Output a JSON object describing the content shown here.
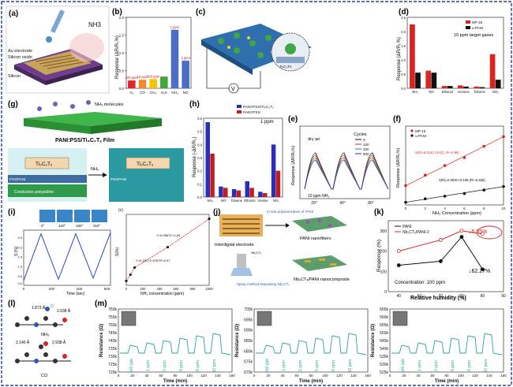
{
  "panel_a": {
    "letter": "(a)",
    "labels": [
      "Au electrode",
      "Silicon oxide",
      "Silicon"
    ],
    "gas": "NH3"
  },
  "panel_b": {
    "letter": "(b)",
    "ylabel": "Response (ΔR/R₀%)",
    "chart_data": {
      "type": "bar",
      "categories": [
        "H₂",
        "CO",
        "CH₄",
        "H₂S",
        "NH₃",
        "NO"
      ],
      "values": [
        0.22,
        0.24,
        0.26,
        0.33,
        1.65,
        0.78
      ],
      "data_labels": [
        "300 ppm",
        "10 ppm",
        "300 ppm",
        "",
        "1 ppm",
        "1 ppm"
      ],
      "colors": [
        "#e0262a",
        "#f08a2a",
        "#f4c400",
        "#41a63b",
        "#4a6fc4",
        "#4a6fc4"
      ],
      "ylim": [
        0,
        2.0
      ],
      "yticks": [
        "0.0",
        "0.5",
        "1.0",
        "1.5",
        "2.0"
      ]
    }
  },
  "panel_c": {
    "letter": "(c)",
    "labels": [
      "V",
      "Ti₃C₂Tx"
    ]
  },
  "panel_d": {
    "letter": "(d)",
    "ylabel": "Response (ΔR/R₀%)",
    "note": "10 ppm target gases",
    "chart_data": {
      "type": "bar",
      "categories": [
        "NH₃",
        "NO",
        "Ethanol",
        "Acetone",
        "Toluene",
        "NO₂"
      ],
      "series": [
        {
          "name": "MP-15",
          "color": "#d9241f",
          "values": [
            2.25,
            0.62,
            0.08,
            0.1,
            0.06,
            1.2
          ]
        },
        {
          "name": "u-PANI",
          "color": "#111111",
          "values": [
            0.55,
            0.55,
            0.08,
            0.06,
            0.04,
            0.3
          ]
        }
      ],
      "ylim": [
        0,
        2.5
      ],
      "yticks": [
        "0.0",
        "0.5",
        "1.0",
        "1.5",
        "2.0",
        "2.5"
      ]
    }
  },
  "panel_e": {
    "letter": "(e)",
    "ylabel": "Response (ΔR/R₀%)",
    "dry_air": "dry air",
    "gas_note": "10 ppm NH₃",
    "legend_title": "Cycles",
    "legend": [
      "0",
      "100",
      "200",
      "500"
    ],
    "xticks": [
      "20°",
      "40°",
      "80°"
    ]
  },
  "panel_f": {
    "letter": "(f)",
    "ylabel": "Response (ΔR/R₀%)",
    "xlabel": "NH₃ Concentration (ppm)",
    "legend": [
      "MP-15",
      "u-PANI"
    ],
    "fit1": "S(R)=6.911C+0.4(C, R²=0.96)",
    "fit2": "S(R)=0.093C+0.105 (R²=0.925)",
    "chart_data": {
      "type": "scatter",
      "x": [
        0,
        2,
        4,
        6,
        8,
        10
      ],
      "series": [
        {
          "name": "MP-15",
          "color": "#d9241f",
          "values": [
            1.1,
            1.7,
            2.25,
            2.7,
            3.35,
            3.9
          ]
        },
        {
          "name": "u-PANI",
          "color": "#111111",
          "values": [
            0.15,
            0.35,
            0.5,
            0.65,
            0.85,
            1.05
          ]
        }
      ],
      "xticks": [
        "0",
        "2",
        "4",
        "6",
        "8",
        "10"
      ]
    }
  },
  "panel_g": {
    "letter": "(g)",
    "molecules": "NH₃ molecules",
    "film": "PANI:PSS/Ti₃C₂Tₓ Film",
    "flake": "Ti₃C₂Tₓ",
    "arrow": "NH₃",
    "sub": "PSS/PANI",
    "chan": "Conductive polyaniline"
  },
  "panel_h": {
    "letter": "(h)",
    "ylabel": "Response (-ΔR/R₀)",
    "note": "1 ppm",
    "chart_data": {
      "type": "bar",
      "categories": [
        "NH₃",
        "NO",
        "Toluene",
        "Ethanol",
        "Aetone",
        "NO₂"
      ],
      "series": [
        {
          "name": "PANI:PSS/Ti₃C₂Tₓ",
          "color": "#2a2fb8",
          "values": [
            0.57,
            0.08,
            0.06,
            0.12,
            0.04,
            0.4
          ]
        },
        {
          "name": "PANI:PSS",
          "color": "#c01d1d",
          "values": [
            0.33,
            0.07,
            0.05,
            0.07,
            0.03,
            0.2
          ]
        }
      ],
      "ylim": [
        0,
        0.6
      ],
      "yticks": [
        "0.0",
        "0.1",
        "0.2",
        "0.3",
        "0.4",
        "0.5",
        "0.6"
      ]
    }
  },
  "panel_i": {
    "letter": "(i)",
    "inner_letter": "(c)",
    "angles": [
      "0°",
      "120°",
      "150°",
      "210°"
    ],
    "xlabel": "Time (sec)",
    "ylabel": "S (%)",
    "xticks": [
      "0",
      "200",
      "400",
      "600"
    ],
    "yticks": [
      "0.2",
      "0.8",
      "1.6",
      "2.4",
      "3.2",
      "4.0"
    ],
    "chart_data": {
      "type": "line",
      "x": [
        0,
        125,
        250,
        375,
        500,
        625
      ],
      "values": [
        0.4,
        4.3,
        0.5,
        4.3,
        0.6,
        4.4
      ]
    },
    "fit_xlabel": "NH₃ concentration (ppm)",
    "fit_ylabel": "S(%)",
    "fit1": "Y=0.33C+2.578 R²=0.97",
    "fit2": "Y=0.0567C+1.64",
    "fit_xticks": [
      "0",
      "200",
      "400",
      "600",
      "800",
      "1000"
    ],
    "fit_data": {
      "type": "scatter",
      "x": [
        0,
        50,
        100,
        500,
        1000
      ],
      "values": [
        0.5,
        1.2,
        2.0,
        4.3,
        7.5
      ]
    }
  },
  "panel_j": {
    "letter": "(j)",
    "interdigital": "Interdigital electrode",
    "insitu": "In-situ polymerization of PANI",
    "pani": "PANI nanofibers",
    "spray": "Spray method Depositing Nb₂CTₓ",
    "nb": "Nb₂CTₓ",
    "composite": "Nb₂CTₓ/PANI nanocomposite"
  },
  "panel_k": {
    "letter": "(k)",
    "ylabel": "Response (%)",
    "xlabel": "Relative humidity (%)",
    "legend": [
      "PANI",
      "Nb₂CTₓ/PANI-2"
    ],
    "ann1": "↓5.85%",
    "ann2": "↓62.27%",
    "conc": "Concentration: 100 ppm",
    "xticks": [
      "40",
      "50",
      "60",
      "70",
      "80",
      "90"
    ],
    "yticks": [
      "0",
      "100",
      "200",
      "300"
    ],
    "chart_data": {
      "type": "line",
      "x": [
        40,
        60,
        70,
        80
      ],
      "series": [
        {
          "name": "PANI",
          "color": "#111111",
          "values": [
            130,
            150,
            270,
            110
          ]
        },
        {
          "name": "Nb₂CTₓ/PANI-2",
          "color": "#d9241f",
          "values": [
            200,
            255,
            300,
            285
          ]
        }
      ],
      "xlim": [
        35,
        90
      ],
      "ylim": [
        0,
        350
      ]
    }
  },
  "panel_l": {
    "letter": "(l)",
    "d1": "1.873 Å",
    "d2": "2.038 Å",
    "mol1": "NH₃",
    "d3": "2.140 Å",
    "d4": "2.938 Å",
    "mol2": "CO"
  },
  "panel_m": {
    "letter": "(m)",
    "ylabel": "Resistance (Ω)",
    "xlabel": "Time (min)",
    "conc_labels": [
      "500 ppb",
      "1 ppm",
      "2 ppm",
      "5 ppm",
      "8 ppm",
      "10 ppm"
    ],
    "xticks": [
      "0",
      "20",
      "40",
      "60",
      "80",
      "100",
      "120",
      "140",
      "160"
    ],
    "plot1": {
      "yticks": [
        "760k",
        "755k",
        "750k",
        "745k",
        "740k",
        "735k",
        "730k",
        "725k",
        "720k"
      ],
      "base": [
        745,
        735
      ]
    },
    "plot2": {
      "yticks": [
        "700k",
        "695k",
        "690k",
        "685k",
        "680k",
        "675k",
        "670k"
      ],
      "base": [
        688,
        680
      ]
    },
    "plot3": {
      "yticks": [
        "565k",
        "560k",
        "555k",
        "550k",
        "545k",
        "540k",
        "535k",
        "530k",
        "525k"
      ],
      "base": [
        550,
        540
      ]
    }
  }
}
